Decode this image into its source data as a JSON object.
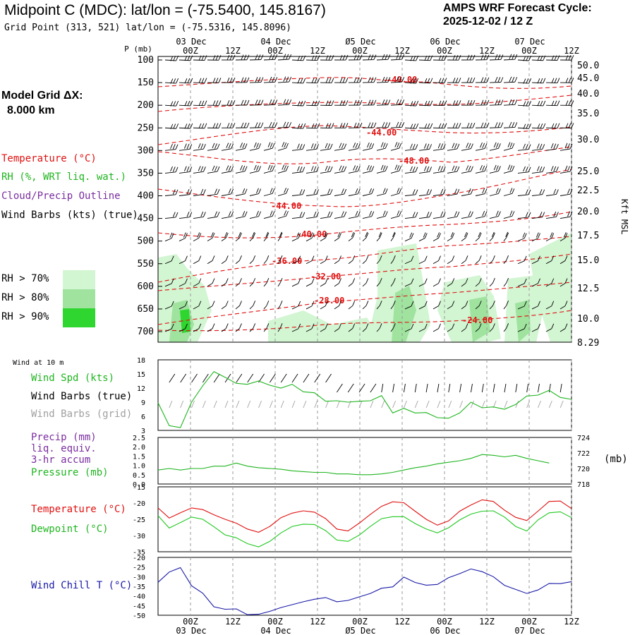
{
  "header": {
    "title": "Midpoint C (MDC):  lat/lon = (-75.5400, 145.8167)",
    "grid_point": "Grid Point (313, 521) lat/lon = (-75.5316, 145.8096)",
    "cycle_line1": "AMPS WRF Forecast Cycle:",
    "cycle_line2": "2025-12-02 / 12  Z"
  },
  "model_grid": {
    "line1": "Model Grid ΔX:",
    "line2": "8.000 km"
  },
  "legend": {
    "temperature": "Temperature (°C)",
    "rh": "RH (%, WRT liq. wat.)",
    "cloud": "Cloud/Precip Outline",
    "wind": "Wind Barbs (kts) (true)",
    "rh70": "RH > 70%",
    "rh80": "RH > 80%",
    "rh90": "RH > 90%",
    "wind10m": "Wind at 10 m",
    "wind_spd": "Wind Spd (kts)",
    "wind_barbs_true": "Wind Barbs (true)",
    "wind_barbs_grid": "Wind Barbs (grid)",
    "precip1": "Precip (mm)",
    "precip2": "liq. equiv.",
    "precip3": "3-hr accum",
    "pressure": "Pressure (mb)",
    "temp2": "Temperature (°C)",
    "dewpoint": "Dewpoint (°C)",
    "windchill": "Wind Chill T (°C)",
    "kft_msl": "Kft MSL",
    "mb_unit": "(mb)"
  },
  "colors": {
    "temperature": "#e01010",
    "rh": "#1fb51f",
    "cloud": "#7a2ea0",
    "rh70": "#d2f5d2",
    "rh80": "#9fe39f",
    "rh90": "#2fd62f",
    "dewpoint": "#1fc81f",
    "windchill": "#1a1aa8",
    "grid_barbs": "#a0a0a0"
  },
  "time_axis": {
    "ticks": [
      "00Z",
      "12Z",
      "00Z",
      "12Z",
      "00Z",
      "12Z",
      "00Z",
      "12Z",
      "00Z",
      "12Z"
    ],
    "days": [
      "03 Dec",
      "04 Dec",
      "Ø5 Dec",
      "06 Dec",
      "07 Dec"
    ]
  },
  "chart_data": [
    {
      "type": "heatmap",
      "name": "cross-section",
      "ylabel": "P (mb)",
      "y_ticks": [
        "100",
        "150",
        "200",
        "250",
        "300",
        "350",
        "400",
        "450",
        "500",
        "550",
        "600",
        "650",
        "700"
      ],
      "right_ticks": [
        "50.0",
        "45.0",
        "40.0",
        "35.0",
        "30.0",
        "25.0",
        "22.5",
        "20.0",
        "17.5",
        "15.0",
        "12.5",
        "10.0",
        "8.29"
      ],
      "temperature_labels": [
        "-40.00",
        "-44.00",
        "-48.00",
        "-44.00",
        "-40.00",
        "-36.00",
        "-32.00",
        "-28.00",
        "-24.00"
      ]
    },
    {
      "type": "line",
      "name": "wind speed",
      "ylim": [
        3,
        18
      ],
      "y_ticks": [
        "18",
        "15",
        "12",
        "9",
        "6",
        "3"
      ],
      "series": [
        {
          "name": "Wind Spd (kts)",
          "values": [
            8.9,
            4.0,
            3.6,
            9.0,
            12.5,
            15.5,
            14.3,
            13.0,
            12.8,
            13.5,
            12.6,
            12.0,
            12.8,
            11.2,
            11.0,
            9.2,
            9.3,
            9.0,
            9.2,
            9.3,
            10.4,
            6.7,
            7.7,
            6.7,
            6.8,
            5.7,
            5.6,
            6.7,
            9.0,
            7.8,
            8.0,
            7.5,
            8.5,
            10.3,
            10.5,
            11.5,
            10.0,
            9.6
          ]
        }
      ]
    },
    {
      "type": "line",
      "name": "precip and pressure",
      "ylim": [
        0,
        2.5
      ],
      "y_ticks": [
        "2.5",
        "2.0",
        "1.5",
        "1.0",
        "0.5",
        "0.0"
      ],
      "right_ylim": [
        718,
        724
      ],
      "right_ticks": [
        "724",
        "722",
        "720",
        "718"
      ],
      "series": [
        {
          "name": "Pressure (mb)",
          "values": [
            719.8,
            720.0,
            719.8,
            720.0,
            720.0,
            720.3,
            720.3,
            720.7,
            720.3,
            720.1,
            720.0,
            719.9,
            719.7,
            719.6,
            719.5,
            719.5,
            719.3,
            719.3,
            719.2,
            719.2,
            719.3,
            719.5,
            719.8,
            720.1,
            720.3,
            720.6,
            720.8,
            721.0,
            721.3,
            721.8,
            721.7,
            721.5,
            721.7,
            721.3,
            721.0,
            720.7
          ]
        }
      ]
    },
    {
      "type": "line",
      "name": "temperature and dewpoint",
      "ylim": [
        -35,
        -15
      ],
      "y_ticks": [
        "-15",
        "-20",
        "-25",
        "-30",
        "-35"
      ],
      "series": [
        {
          "name": "Temperature (°C)",
          "values": [
            -21.5,
            -24.6,
            -23.0,
            -21.5,
            -22.0,
            -23.6,
            -25.0,
            -26.2,
            -28.0,
            -29.0,
            -27.2,
            -24.5,
            -23.1,
            -22.4,
            -22.8,
            -24.8,
            -28.0,
            -28.6,
            -26.2,
            -23.5,
            -21.0,
            -19.6,
            -19.9,
            -22.5,
            -25.0,
            -26.8,
            -25.5,
            -22.5,
            -20.6,
            -19.0,
            -19.5,
            -22.2,
            -24.4,
            -25.4,
            -22.5,
            -19.5,
            -19.4,
            -21.7
          ]
        },
        {
          "name": "Dewpoint (°C)",
          "values": [
            -23.9,
            -27.7,
            -26.0,
            -24.3,
            -25.0,
            -27.3,
            -29.8,
            -30.7,
            -32.5,
            -33.5,
            -31.8,
            -29.2,
            -27.2,
            -26.5,
            -26.6,
            -28.5,
            -31.4,
            -31.8,
            -29.9,
            -27.2,
            -24.8,
            -24.2,
            -24.2,
            -26.3,
            -28.0,
            -29.2,
            -27.6,
            -25.2,
            -23.4,
            -22.5,
            -22.4,
            -24.3,
            -27.2,
            -28.6,
            -25.2,
            -23.0,
            -22.7,
            -24.5
          ]
        }
      ]
    },
    {
      "type": "line",
      "name": "wind chill",
      "ylim": [
        -50,
        -20
      ],
      "y_ticks": [
        "-20",
        "-25",
        "-30",
        "-35",
        "-40",
        "-45",
        "-50"
      ],
      "series": [
        {
          "name": "Wind Chill T (°C)",
          "values": [
            -32.9,
            -27.6,
            -25.3,
            -34.7,
            -38.6,
            -45.6,
            -46.9,
            -46.7,
            -49.7,
            -49.5,
            -48.0,
            -46.0,
            -44.5,
            -43.0,
            -41.7,
            -40.8,
            -43.0,
            -42.3,
            -40.5,
            -38.7,
            -36.0,
            -35.3,
            -30.2,
            -33.0,
            -34.4,
            -34.0,
            -30.5,
            -28.4,
            -26.0,
            -27.4,
            -30.0,
            -34.5,
            -36.6,
            -38.7,
            -36.9,
            -33.5,
            -33.6,
            -32.6
          ]
        }
      ]
    }
  ]
}
